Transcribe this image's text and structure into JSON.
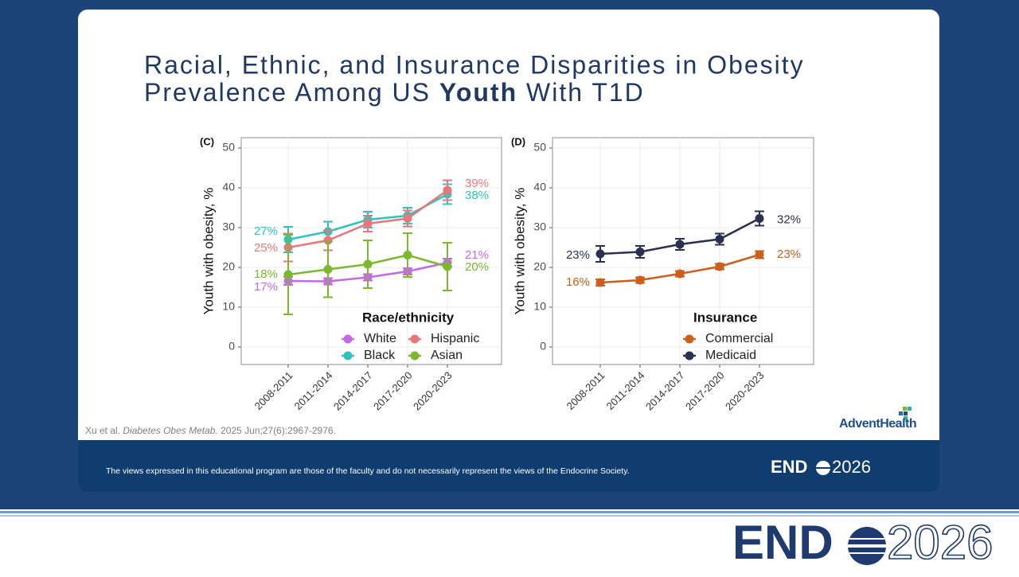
{
  "slide": {
    "title_parts": [
      "Racial, Ethnic, and Insurance Disparities in Obesity",
      "Prevalence Among US ",
      "Youth",
      " With T1D"
    ],
    "citation_parts": [
      "Xu et al. ",
      "Diabetes Obes Metab.",
      " 2025 Jun;27(6):2967-2976."
    ],
    "disclaimer": "The views expressed in this educational program are those of the faculty and do not necessarily represent the views of the Endocrine Society.",
    "sponsor_logo": "AdventHealth",
    "footer_logo": {
      "brand": "END",
      "year": "2026"
    },
    "banner_logo": {
      "brand": "END",
      "year": "2026"
    }
  },
  "chart_data": [
    {
      "type": "line",
      "panel_label": "(C)",
      "y_label": "Youth with obesity, %",
      "legend_title": "Race/ethnicity",
      "categories": [
        "2008-2011",
        "2011-2014",
        "2014-2017",
        "2017-2020",
        "2020-2023"
      ],
      "ylim": [
        -4.4,
        52.6
      ],
      "yticks": [
        0,
        10,
        20,
        30,
        40,
        50
      ],
      "grid": true,
      "legend": "bottom-right",
      "series": [
        {
          "name": "White",
          "color": "#c46ae6",
          "values": [
            16.6,
            16.5,
            17.5,
            19.0,
            21.2
          ],
          "errors": [
            1.0,
            0.8,
            0.8,
            0.8,
            1.0
          ],
          "value_labels": [
            "17%",
            null,
            null,
            null,
            "21%"
          ]
        },
        {
          "name": "Black",
          "color": "#2ec4bc",
          "values": [
            27.0,
            29.0,
            32.0,
            33.0,
            38.4
          ],
          "errors": [
            3.2,
            2.5,
            2.0,
            2.0,
            2.5
          ],
          "value_labels": [
            "27%",
            null,
            null,
            null,
            "38%"
          ]
        },
        {
          "name": "Hispanic",
          "color": "#e8767a",
          "values": [
            25.0,
            26.8,
            31.0,
            32.3,
            39.4
          ],
          "errors": [
            3.5,
            2.5,
            2.0,
            2.0,
            2.5
          ],
          "value_labels": [
            "25%",
            null,
            null,
            null,
            "39%"
          ]
        },
        {
          "name": "Asian",
          "color": "#7ab82c",
          "values": [
            18.2,
            19.5,
            20.8,
            23.1,
            20.2
          ],
          "errors": [
            10.0,
            7.0,
            6.0,
            5.5,
            6.0
          ],
          "value_labels": [
            "18%",
            null,
            null,
            null,
            "20%"
          ]
        }
      ]
    },
    {
      "type": "line",
      "panel_label": "(D)",
      "y_label": "Youth with obesity, %",
      "legend_title": "Insurance",
      "categories": [
        "2008-2011",
        "2011-2014",
        "2014-2017",
        "2017-2020",
        "2020-2023"
      ],
      "ylim": [
        -4.4,
        52.6
      ],
      "yticks": [
        0,
        10,
        20,
        30,
        40,
        50
      ],
      "grid": true,
      "legend": "bottom-right",
      "series": [
        {
          "name": "Commercial",
          "color": "#cc5f1c",
          "values": [
            16.2,
            16.8,
            18.4,
            20.2,
            23.2
          ],
          "errors": [
            0.8,
            0.7,
            0.7,
            0.7,
            0.9
          ],
          "value_labels": [
            "16%",
            null,
            null,
            null,
            "23%"
          ]
        },
        {
          "name": "Medicaid",
          "color": "#2a3150",
          "values": [
            23.4,
            23.9,
            25.8,
            27.1,
            32.3
          ],
          "errors": [
            2.0,
            1.5,
            1.4,
            1.4,
            1.8
          ],
          "value_labels": [
            "23%",
            null,
            null,
            null,
            "32%"
          ]
        }
      ]
    }
  ]
}
